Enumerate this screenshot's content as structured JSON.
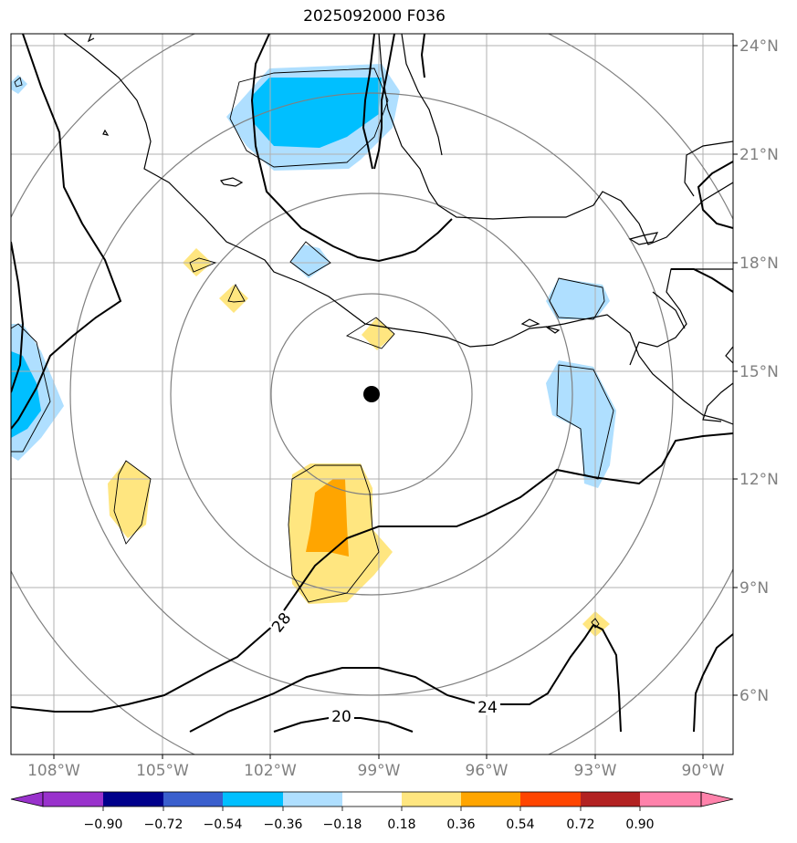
{
  "title": "2025092000 F036",
  "lon_ticks": [
    "108°W",
    "105°W",
    "102°W",
    "99°W",
    "96°W",
    "93°W",
    "90°W"
  ],
  "lat_ticks": [
    "24°N",
    "21°N",
    "18°N",
    "15°N",
    "12°N",
    "9°N",
    "6°N"
  ],
  "contour_labels": [
    "28",
    "24",
    "20"
  ],
  "colorbar": {
    "tick_labels": [
      "−0.90",
      "−0.72",
      "−0.54",
      "−0.36",
      "−0.18",
      "0.18",
      "0.36",
      "0.54",
      "0.72",
      "0.90"
    ],
    "colors": [
      "#9932cc",
      "#00008b",
      "#3a5fcd",
      "#00bfff",
      "#afdfff",
      "#ffffff",
      "#ffe680",
      "#ffa500",
      "#ff4500",
      "#b22222",
      "#ff82ab"
    ]
  },
  "colors": {
    "grid": "#b0b0b0",
    "range_rings": "#808080",
    "coastline": "#000000",
    "contour": "#000000"
  },
  "center_marker": {
    "lon": "99.2°W",
    "lat": "14.3°N"
  }
}
